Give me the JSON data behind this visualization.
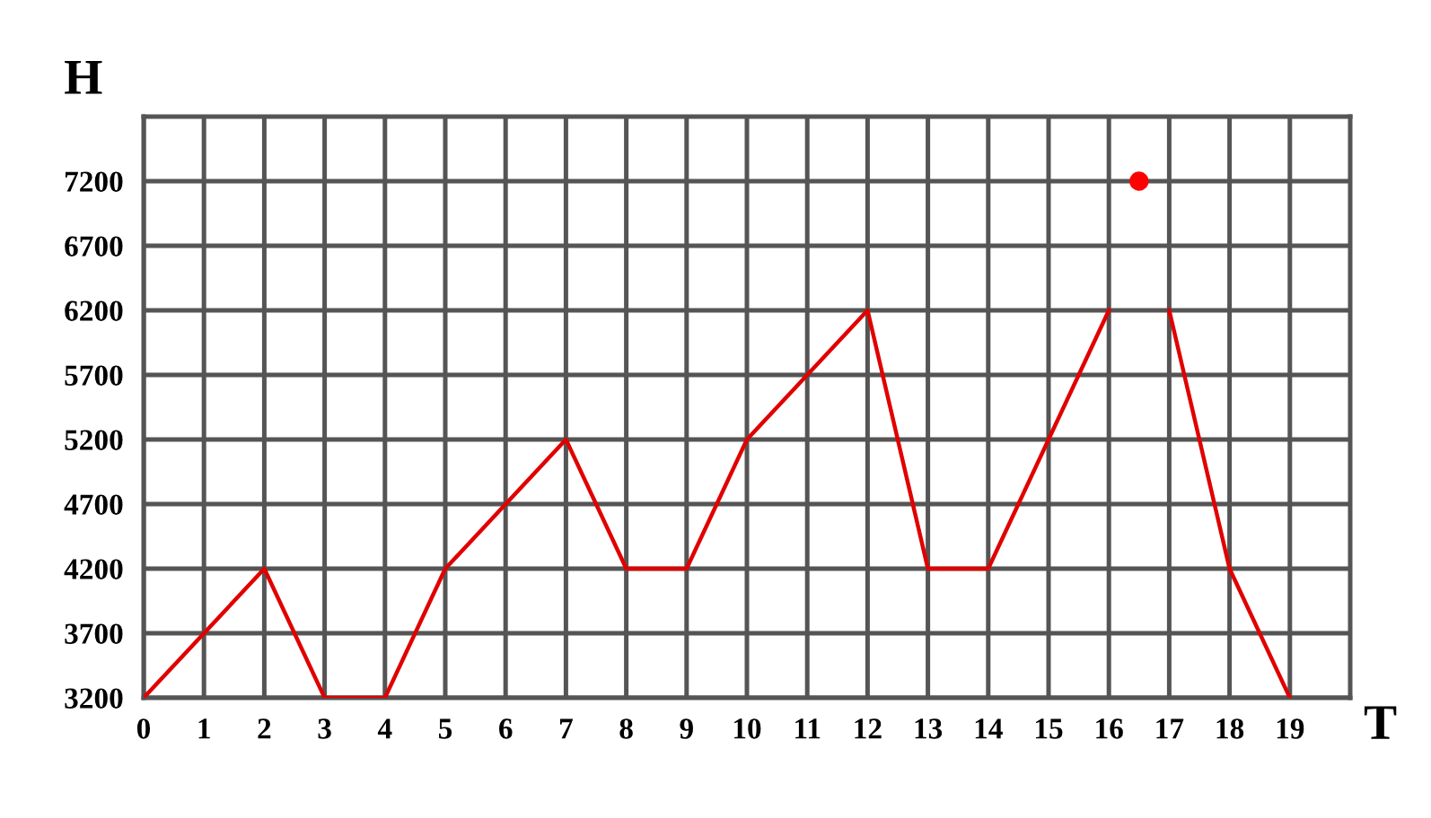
{
  "chart_data": {
    "type": "line",
    "xlabel": "T",
    "ylabel": "H",
    "xlim": [
      0,
      20
    ],
    "ylim": [
      3200,
      7700
    ],
    "xticks": [
      0,
      1,
      2,
      3,
      4,
      5,
      6,
      7,
      8,
      9,
      10,
      11,
      12,
      13,
      14,
      15,
      16,
      17,
      18,
      19
    ],
    "yticks": [
      3200,
      3700,
      4200,
      4700,
      5200,
      5700,
      6200,
      6700,
      7200
    ],
    "grid": true,
    "legend": false,
    "series": [
      {
        "color": "#e00000",
        "marker": "none",
        "x": [
          0,
          2,
          3,
          4,
          5,
          7,
          8,
          9,
          10,
          12,
          13,
          14,
          16,
          16.5,
          17,
          18,
          19
        ],
        "values": [
          3200,
          4200,
          3200,
          3200,
          4200,
          5200,
          4200,
          4200,
          5200,
          6200,
          4200,
          4200,
          6200,
          null,
          6200,
          4200,
          3200
        ]
      },
      {
        "type": "scatter",
        "color": "#ff0000",
        "marker": "circle",
        "x": [
          16.5
        ],
        "values": [
          7200
        ]
      }
    ]
  }
}
